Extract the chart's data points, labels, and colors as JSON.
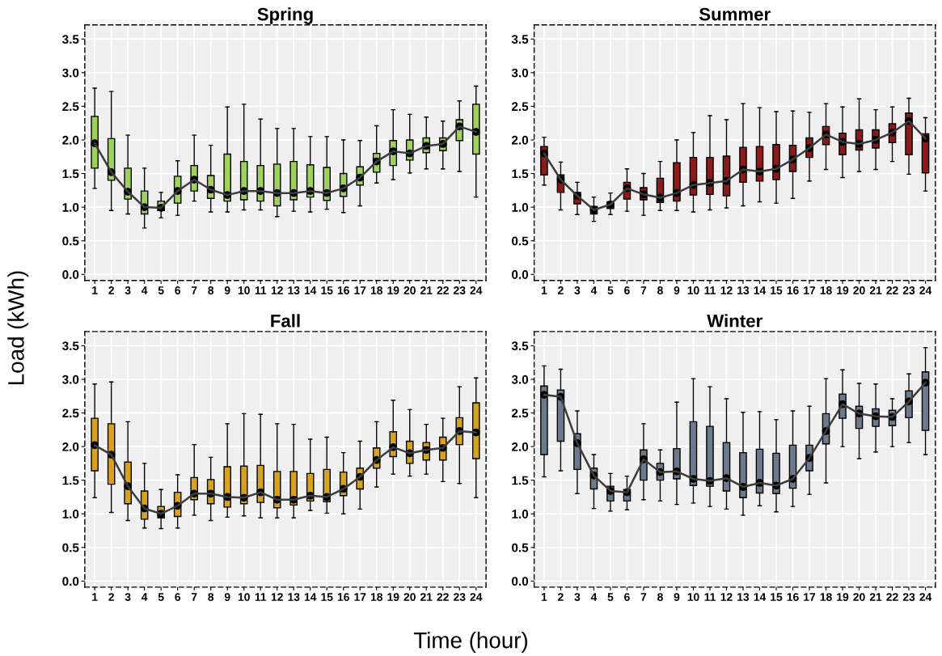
{
  "chart_data": [
    {
      "type": "box",
      "title": "Spring",
      "xlabel": "Time (hour)",
      "ylabel": "Load (kWh)",
      "grid": true,
      "categories": [
        "1",
        "2",
        "3",
        "4",
        "5",
        "6",
        "7",
        "8",
        "9",
        "10",
        "11",
        "12",
        "13",
        "14",
        "15",
        "16",
        "17",
        "18",
        "19",
        "20",
        "21",
        "22",
        "23",
        "24"
      ],
      "ylim": [
        -0.09,
        3.71
      ],
      "yticks": [
        {
          "value": 0,
          "label": "0.0"
        },
        {
          "value": 0.5,
          "label": "0.5"
        },
        {
          "value": 1,
          "label": "1.0"
        },
        {
          "value": 1.5,
          "label": "1.5"
        },
        {
          "value": 2,
          "label": "2.0"
        },
        {
          "value": 2.5,
          "label": "2.5"
        },
        {
          "value": 3,
          "label": "3.0"
        },
        {
          "value": 3.5,
          "label": "3.5"
        }
      ],
      "series": [
        {
          "type": "box",
          "color": "#9fd25c",
          "marker": "circle",
          "boxes": [
            {
              "low": 1.28,
              "q1": 1.58,
              "median": 1.95,
              "q3": 2.35,
              "high": 2.77
            },
            {
              "low": 0.95,
              "q1": 1.4,
              "median": 1.52,
              "q3": 2.02,
              "high": 2.72
            },
            {
              "low": 0.9,
              "q1": 1.12,
              "median": 1.23,
              "q3": 1.58,
              "high": 2.07
            },
            {
              "low": 0.69,
              "q1": 0.9,
              "median": 1.0,
              "q3": 1.24,
              "high": 1.58
            },
            {
              "low": 0.84,
              "q1": 0.95,
              "median": 0.99,
              "q3": 1.09,
              "high": 1.22
            },
            {
              "low": 0.88,
              "q1": 1.06,
              "median": 1.24,
              "q3": 1.46,
              "high": 1.69
            },
            {
              "low": 1.09,
              "q1": 1.24,
              "median": 1.41,
              "q3": 1.62,
              "high": 2.07
            },
            {
              "low": 0.93,
              "q1": 1.13,
              "median": 1.26,
              "q3": 1.47,
              "high": 1.92
            },
            {
              "low": 0.93,
              "q1": 1.09,
              "median": 1.18,
              "q3": 1.79,
              "high": 2.49
            },
            {
              "low": 0.96,
              "q1": 1.11,
              "median": 1.24,
              "q3": 1.68,
              "high": 2.53
            },
            {
              "low": 0.96,
              "q1": 1.09,
              "median": 1.24,
              "q3": 1.62,
              "high": 2.31
            },
            {
              "low": 0.86,
              "q1": 1.02,
              "median": 1.21,
              "q3": 1.64,
              "high": 2.17
            },
            {
              "low": 0.94,
              "q1": 1.11,
              "median": 1.21,
              "q3": 1.68,
              "high": 2.17
            },
            {
              "low": 0.93,
              "q1": 1.15,
              "median": 1.24,
              "q3": 1.63,
              "high": 2.05
            },
            {
              "low": 0.97,
              "q1": 1.1,
              "median": 1.21,
              "q3": 1.59,
              "high": 2.05
            },
            {
              "low": 0.92,
              "q1": 1.16,
              "median": 1.28,
              "q3": 1.5,
              "high": 2.0
            },
            {
              "low": 1.02,
              "q1": 1.33,
              "median": 1.44,
              "q3": 1.6,
              "high": 1.99
            },
            {
              "low": 1.36,
              "q1": 1.52,
              "median": 1.68,
              "q3": 1.8,
              "high": 2.21
            },
            {
              "low": 1.41,
              "q1": 1.62,
              "median": 1.83,
              "q3": 1.99,
              "high": 2.45
            },
            {
              "low": 1.51,
              "q1": 1.7,
              "median": 1.8,
              "q3": 2.0,
              "high": 2.38
            },
            {
              "low": 1.57,
              "q1": 1.81,
              "median": 1.91,
              "q3": 2.03,
              "high": 2.34
            },
            {
              "low": 1.57,
              "q1": 1.84,
              "median": 1.94,
              "q3": 2.03,
              "high": 2.28
            },
            {
              "low": 1.53,
              "q1": 1.99,
              "median": 2.2,
              "q3": 2.3,
              "high": 2.58
            },
            {
              "low": 1.15,
              "q1": 1.79,
              "median": 2.12,
              "q3": 2.53,
              "high": 2.8
            }
          ]
        },
        {
          "type": "line",
          "color": "#3d3d3d",
          "values": [
            1.95,
            1.52,
            1.23,
            1.0,
            0.99,
            1.24,
            1.41,
            1.26,
            1.18,
            1.24,
            1.24,
            1.21,
            1.21,
            1.24,
            1.21,
            1.28,
            1.44,
            1.68,
            1.83,
            1.8,
            1.91,
            1.94,
            2.2,
            2.12
          ]
        }
      ]
    },
    {
      "type": "box",
      "title": "Summer",
      "grid": true,
      "categories": [
        "1",
        "2",
        "3",
        "4",
        "5",
        "6",
        "7",
        "8",
        "9",
        "10",
        "11",
        "12",
        "13",
        "14",
        "15",
        "16",
        "17",
        "18",
        "19",
        "20",
        "21",
        "22",
        "23",
        "24"
      ],
      "ylim": [
        -0.09,
        3.71
      ],
      "yticks": [
        {
          "value": 0,
          "label": "0.0"
        },
        {
          "value": 0.5,
          "label": "0.5"
        },
        {
          "value": 1,
          "label": "1.0"
        },
        {
          "value": 1.5,
          "label": "1.5"
        },
        {
          "value": 2,
          "label": "2.0"
        },
        {
          "value": 2.5,
          "label": "2.5"
        },
        {
          "value": 3,
          "label": "3.0"
        },
        {
          "value": 3.5,
          "label": "3.5"
        }
      ],
      "series": [
        {
          "type": "box",
          "color": "#8b1a1a",
          "marker": "circle",
          "boxes": [
            {
              "low": 1.33,
              "q1": 1.48,
              "median": 1.8,
              "q3": 1.9,
              "high": 2.04
            },
            {
              "low": 0.96,
              "q1": 1.22,
              "median": 1.41,
              "q3": 1.48,
              "high": 1.67
            },
            {
              "low": 0.89,
              "q1": 1.05,
              "median": 1.17,
              "q3": 1.22,
              "high": 1.37
            },
            {
              "low": 0.79,
              "q1": 0.9,
              "median": 0.96,
              "q3": 1.01,
              "high": 1.15
            },
            {
              "low": 0.89,
              "q1": 0.98,
              "median": 1.04,
              "q3": 1.08,
              "high": 1.21
            },
            {
              "low": 0.94,
              "q1": 1.12,
              "median": 1.28,
              "q3": 1.37,
              "high": 1.57
            },
            {
              "low": 0.88,
              "q1": 1.11,
              "median": 1.19,
              "q3": 1.29,
              "high": 1.5
            },
            {
              "low": 0.95,
              "q1": 1.07,
              "median": 1.14,
              "q3": 1.43,
              "high": 1.68
            },
            {
              "low": 0.95,
              "q1": 1.09,
              "median": 1.21,
              "q3": 1.66,
              "high": 2.0
            },
            {
              "low": 0.93,
              "q1": 1.18,
              "median": 1.33,
              "q3": 1.74,
              "high": 2.11
            },
            {
              "low": 0.96,
              "q1": 1.19,
              "median": 1.36,
              "q3": 1.74,
              "high": 2.36
            },
            {
              "low": 0.99,
              "q1": 1.17,
              "median": 1.39,
              "q3": 1.76,
              "high": 2.3
            },
            {
              "low": 1.02,
              "q1": 1.37,
              "median": 1.56,
              "q3": 1.89,
              "high": 2.54
            },
            {
              "low": 1.08,
              "q1": 1.39,
              "median": 1.53,
              "q3": 1.9,
              "high": 2.48
            },
            {
              "low": 1.06,
              "q1": 1.41,
              "median": 1.57,
              "q3": 1.93,
              "high": 2.42
            },
            {
              "low": 1.13,
              "q1": 1.53,
              "median": 1.71,
              "q3": 1.92,
              "high": 2.43
            },
            {
              "low": 1.39,
              "q1": 1.74,
              "median": 1.88,
              "q3": 2.03,
              "high": 2.41
            },
            {
              "low": 1.56,
              "q1": 1.93,
              "median": 2.08,
              "q3": 2.2,
              "high": 2.54
            },
            {
              "low": 1.44,
              "q1": 1.78,
              "median": 1.97,
              "q3": 2.1,
              "high": 2.49
            },
            {
              "low": 1.53,
              "q1": 1.85,
              "median": 1.94,
              "q3": 2.15,
              "high": 2.61
            },
            {
              "low": 1.56,
              "q1": 1.88,
              "median": 2.0,
              "q3": 2.15,
              "high": 2.45
            },
            {
              "low": 1.68,
              "q1": 1.96,
              "median": 2.11,
              "q3": 2.24,
              "high": 2.49
            },
            {
              "low": 1.49,
              "q1": 1.78,
              "median": 2.28,
              "q3": 2.4,
              "high": 2.62
            },
            {
              "low": 1.24,
              "q1": 1.51,
              "median": 2.02,
              "q3": 2.09,
              "high": 2.33
            }
          ]
        },
        {
          "type": "line",
          "color": "#3d3d3d",
          "values": [
            1.8,
            1.41,
            1.17,
            0.96,
            1.04,
            1.28,
            1.19,
            1.14,
            1.21,
            1.33,
            1.36,
            1.39,
            1.56,
            1.53,
            1.57,
            1.71,
            1.88,
            2.08,
            1.97,
            1.94,
            2.0,
            2.11,
            2.28,
            2.02
          ]
        }
      ]
    },
    {
      "type": "box",
      "title": "Fall",
      "grid": true,
      "categories": [
        "1",
        "2",
        "3",
        "4",
        "5",
        "6",
        "7",
        "8",
        "9",
        "10",
        "11",
        "12",
        "13",
        "14",
        "15",
        "16",
        "17",
        "18",
        "19",
        "20",
        "21",
        "22",
        "23",
        "24"
      ],
      "ylim": [
        -0.09,
        3.71
      ],
      "yticks": [
        {
          "value": 0,
          "label": "0.0"
        },
        {
          "value": 0.5,
          "label": "0.5"
        },
        {
          "value": 1,
          "label": "1.0"
        },
        {
          "value": 1.5,
          "label": "1.5"
        },
        {
          "value": 2,
          "label": "2.0"
        },
        {
          "value": 2.5,
          "label": "2.5"
        },
        {
          "value": 3,
          "label": "3.0"
        },
        {
          "value": 3.5,
          "label": "3.5"
        }
      ],
      "series": [
        {
          "type": "box",
          "color": "#d6a21f",
          "marker": "circle",
          "boxes": [
            {
              "low": 1.24,
              "q1": 1.64,
              "median": 2.02,
              "q3": 2.42,
              "high": 2.93
            },
            {
              "low": 1.02,
              "q1": 1.44,
              "median": 1.88,
              "q3": 2.34,
              "high": 2.96
            },
            {
              "low": 0.9,
              "q1": 1.15,
              "median": 1.41,
              "q3": 1.77,
              "high": 2.37
            },
            {
              "low": 0.79,
              "q1": 0.92,
              "median": 1.08,
              "q3": 1.34,
              "high": 1.75
            },
            {
              "low": 0.78,
              "q1": 0.94,
              "median": 1.0,
              "q3": 1.11,
              "high": 1.36
            },
            {
              "low": 0.79,
              "q1": 0.96,
              "median": 1.12,
              "q3": 1.32,
              "high": 1.58
            },
            {
              "low": 0.98,
              "q1": 1.21,
              "median": 1.3,
              "q3": 1.54,
              "high": 2.03
            },
            {
              "low": 0.9,
              "q1": 1.15,
              "median": 1.3,
              "q3": 1.51,
              "high": 1.84
            },
            {
              "low": 0.95,
              "q1": 1.1,
              "median": 1.25,
              "q3": 1.7,
              "high": 2.34
            },
            {
              "low": 0.97,
              "q1": 1.15,
              "median": 1.24,
              "q3": 1.71,
              "high": 2.49
            },
            {
              "low": 0.94,
              "q1": 1.17,
              "median": 1.32,
              "q3": 1.72,
              "high": 2.48
            },
            {
              "low": 0.94,
              "q1": 1.09,
              "median": 1.21,
              "q3": 1.63,
              "high": 2.34
            },
            {
              "low": 0.94,
              "q1": 1.13,
              "median": 1.21,
              "q3": 1.63,
              "high": 2.33
            },
            {
              "low": 1.05,
              "q1": 1.19,
              "median": 1.27,
              "q3": 1.6,
              "high": 2.11
            },
            {
              "low": 1.01,
              "q1": 1.18,
              "median": 1.25,
              "q3": 1.66,
              "high": 2.14
            },
            {
              "low": 1.0,
              "q1": 1.27,
              "median": 1.37,
              "q3": 1.62,
              "high": 1.91
            },
            {
              "low": 1.07,
              "q1": 1.37,
              "median": 1.55,
              "q3": 1.68,
              "high": 2.08
            },
            {
              "low": 1.4,
              "q1": 1.68,
              "median": 1.8,
              "q3": 1.98,
              "high": 2.37
            },
            {
              "low": 1.59,
              "q1": 1.85,
              "median": 1.99,
              "q3": 2.22,
              "high": 2.69
            },
            {
              "low": 1.56,
              "q1": 1.75,
              "median": 1.9,
              "q3": 2.08,
              "high": 2.55
            },
            {
              "low": 1.59,
              "q1": 1.8,
              "median": 1.95,
              "q3": 2.06,
              "high": 2.33
            },
            {
              "low": 1.48,
              "q1": 1.8,
              "median": 1.98,
              "q3": 2.14,
              "high": 2.42
            },
            {
              "low": 1.45,
              "q1": 2.03,
              "median": 2.23,
              "q3": 2.43,
              "high": 2.89
            },
            {
              "low": 1.24,
              "q1": 1.82,
              "median": 2.21,
              "q3": 2.65,
              "high": 3.02
            }
          ]
        },
        {
          "type": "line",
          "color": "#3d3d3d",
          "values": [
            2.02,
            1.88,
            1.41,
            1.08,
            1.0,
            1.12,
            1.3,
            1.3,
            1.25,
            1.24,
            1.32,
            1.21,
            1.21,
            1.27,
            1.25,
            1.37,
            1.55,
            1.8,
            1.99,
            1.9,
            1.95,
            1.98,
            2.23,
            2.21
          ]
        }
      ]
    },
    {
      "type": "box",
      "title": "Winter",
      "grid": true,
      "categories": [
        "1",
        "2",
        "3",
        "4",
        "5",
        "6",
        "7",
        "8",
        "9",
        "10",
        "11",
        "12",
        "13",
        "14",
        "15",
        "16",
        "17",
        "18",
        "19",
        "20",
        "21",
        "22",
        "23",
        "24"
      ],
      "ylim": [
        -0.09,
        3.71
      ],
      "yticks": [
        {
          "value": 0,
          "label": "0.0"
        },
        {
          "value": 0.5,
          "label": "0.5"
        },
        {
          "value": 1,
          "label": "1.0"
        },
        {
          "value": 1.5,
          "label": "1.5"
        },
        {
          "value": 2,
          "label": "2.0"
        },
        {
          "value": 2.5,
          "label": "2.5"
        },
        {
          "value": 3,
          "label": "3.0"
        },
        {
          "value": 3.5,
          "label": "3.5"
        }
      ],
      "series": [
        {
          "type": "box",
          "color": "#6b7a8c",
          "marker": "circle",
          "boxes": [
            {
              "low": 1.55,
              "q1": 1.88,
              "median": 2.77,
              "q3": 2.9,
              "high": 3.2
            },
            {
              "low": 1.64,
              "q1": 2.08,
              "median": 2.74,
              "q3": 2.84,
              "high": 3.15
            },
            {
              "low": 1.3,
              "q1": 1.66,
              "median": 2.05,
              "q3": 2.19,
              "high": 2.53
            },
            {
              "low": 1.08,
              "q1": 1.37,
              "median": 1.57,
              "q3": 1.68,
              "high": 1.88
            },
            {
              "low": 1.04,
              "q1": 1.19,
              "median": 1.34,
              "q3": 1.41,
              "high": 1.6
            },
            {
              "low": 1.06,
              "q1": 1.19,
              "median": 1.32,
              "q3": 1.36,
              "high": 1.56
            },
            {
              "low": 1.21,
              "q1": 1.5,
              "median": 1.81,
              "q3": 1.95,
              "high": 2.34
            },
            {
              "low": 1.19,
              "q1": 1.5,
              "median": 1.62,
              "q3": 1.75,
              "high": 1.95
            },
            {
              "low": 1.14,
              "q1": 1.52,
              "median": 1.63,
              "q3": 1.97,
              "high": 2.66
            },
            {
              "low": 1.16,
              "q1": 1.42,
              "median": 1.52,
              "q3": 2.37,
              "high": 3.01
            },
            {
              "low": 1.11,
              "q1": 1.41,
              "median": 1.49,
              "q3": 2.3,
              "high": 2.89
            },
            {
              "low": 1.07,
              "q1": 1.34,
              "median": 1.53,
              "q3": 2.06,
              "high": 2.71
            },
            {
              "low": 0.98,
              "q1": 1.24,
              "median": 1.4,
              "q3": 1.91,
              "high": 2.51
            },
            {
              "low": 1.12,
              "q1": 1.31,
              "median": 1.46,
              "q3": 1.96,
              "high": 2.52
            },
            {
              "low": 1.03,
              "q1": 1.3,
              "median": 1.42,
              "q3": 1.9,
              "high": 2.4
            },
            {
              "low": 1.11,
              "q1": 1.38,
              "median": 1.52,
              "q3": 2.02,
              "high": 2.53
            },
            {
              "low": 1.29,
              "q1": 1.64,
              "median": 1.83,
              "q3": 2.02,
              "high": 2.6
            },
            {
              "low": 1.46,
              "q1": 2.04,
              "median": 2.23,
              "q3": 2.49,
              "high": 3.01
            },
            {
              "low": 2.0,
              "q1": 2.42,
              "median": 2.63,
              "q3": 2.78,
              "high": 3.14
            },
            {
              "low": 1.82,
              "q1": 2.27,
              "median": 2.49,
              "q3": 2.6,
              "high": 2.94
            },
            {
              "low": 1.92,
              "q1": 2.3,
              "median": 2.45,
              "q3": 2.56,
              "high": 2.93
            },
            {
              "low": 2.0,
              "q1": 2.31,
              "median": 2.44,
              "q3": 2.54,
              "high": 2.71
            },
            {
              "low": 2.06,
              "q1": 2.43,
              "median": 2.67,
              "q3": 2.83,
              "high": 3.08
            },
            {
              "low": 1.88,
              "q1": 2.24,
              "median": 2.95,
              "q3": 3.11,
              "high": 3.47
            }
          ]
        },
        {
          "type": "line",
          "color": "#3d3d3d",
          "values": [
            2.77,
            2.74,
            2.05,
            1.57,
            1.34,
            1.32,
            1.81,
            1.62,
            1.63,
            1.52,
            1.49,
            1.53,
            1.4,
            1.46,
            1.42,
            1.52,
            1.83,
            2.23,
            2.63,
            2.49,
            2.45,
            2.44,
            2.67,
            2.95
          ]
        }
      ]
    }
  ]
}
